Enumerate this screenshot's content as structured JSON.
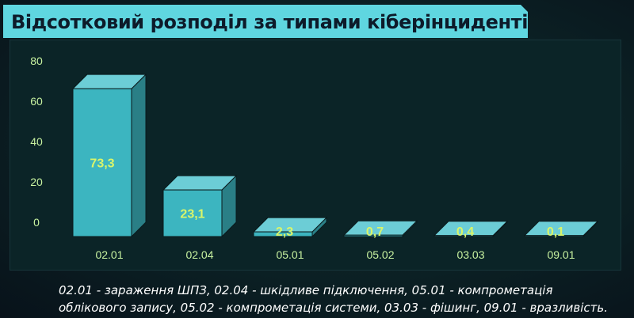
{
  "title": "Відсотковий розподіл за типами кіберінцидентів",
  "caption": "02.01 - зараження ШПЗ, 02.04 - шкідливе підключення, 05.01 - компрометація облікового запису, 05.02 - компрометація системи, 03.03 - фішинг, 09.01 - вразливість.",
  "colors": {
    "bar_front": "#3cb5c0",
    "bar_top": "#6ccdd6",
    "bar_side": "#2a7f86",
    "value_label": "#d9f56a",
    "axis_text": "#c8f2a0",
    "title_bg": "#5fd6e0"
  },
  "chart_data": {
    "type": "bar",
    "title": "Відсотковий розподіл за типами кіберінцидентів",
    "xlabel": "",
    "ylabel": "",
    "categories": [
      "02.01",
      "02.04",
      "05.01",
      "05.02",
      "03.03",
      "09.01"
    ],
    "values": [
      73.3,
      23.1,
      2.3,
      0.7,
      0.4,
      0.1
    ],
    "value_labels": [
      "73,3",
      "23,1",
      "2,3",
      "0,7",
      "0,4",
      "0,1"
    ],
    "yticks": [
      "0",
      "20",
      "40",
      "60",
      "80"
    ],
    "ylim": [
      0,
      80
    ],
    "grid": false,
    "legend": false,
    "style": "3d"
  }
}
